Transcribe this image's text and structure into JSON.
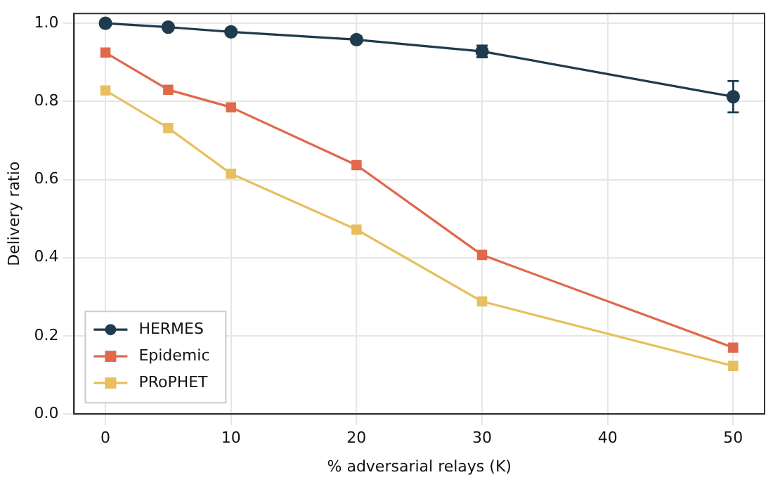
{
  "chart_data": {
    "type": "line",
    "xlabel": "% adversarial relays (K)",
    "ylabel": "Delivery ratio",
    "x": [
      0,
      5,
      10,
      20,
      30,
      50
    ],
    "series": [
      {
        "name": "HERMES",
        "color": "#1f3b4d",
        "marker": "circle",
        "values": [
          1.0,
          0.99,
          0.978,
          0.958,
          0.928,
          0.812
        ],
        "errors": [
          null,
          null,
          null,
          0.008,
          0.015,
          0.04
        ]
      },
      {
        "name": "Epidemic",
        "color": "#e0684b",
        "marker": "square",
        "values": [
          0.925,
          0.83,
          0.785,
          0.637,
          0.407,
          0.17
        ]
      },
      {
        "name": "PRoPHET",
        "color": "#e8bf5f",
        "marker": "square",
        "values": [
          0.828,
          0.732,
          0.615,
          0.472,
          0.288,
          0.123
        ]
      }
    ],
    "xlim": [
      -2.5,
      52.5
    ],
    "xticks": [
      0,
      10,
      20,
      30,
      40,
      50
    ],
    "ylim": [
      0,
      1.025
    ],
    "yticks": [
      {
        "value": 0,
        "label": "0.0"
      },
      {
        "value": 0.2,
        "label": "0.2"
      },
      {
        "value": 0.4,
        "label": "0.4"
      },
      {
        "value": 0.6,
        "label": "0.6"
      },
      {
        "value": 0.8,
        "label": "0.8"
      },
      {
        "value": 1,
        "label": "1.0"
      }
    ],
    "grid": true,
    "legend": "bottom left",
    "line_style": "solid"
  }
}
